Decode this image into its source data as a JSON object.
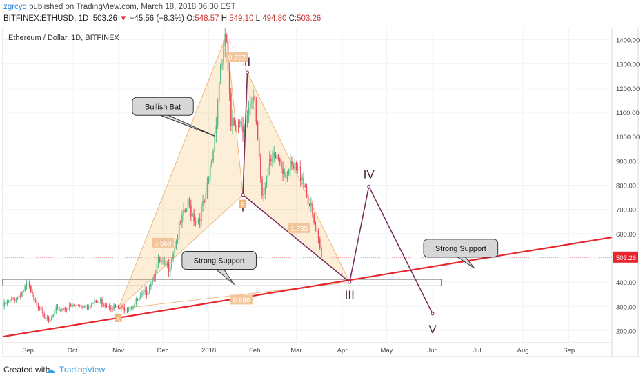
{
  "header": {
    "username": "zgrcyd",
    "published": " published on TradingView.com, March 18, 2018 06:30 EST",
    "symbol": "BITFINEX:ETHUSD, 1D",
    "last": "503.26",
    "change_arrow": "▼",
    "change": "−45.56 (−8.3%)",
    "o_label": "O:",
    "o_value": "548.57",
    "h_label": "H:",
    "h_value": "549.10",
    "l_label": "L:",
    "l_value": "494.80",
    "c_label": "C:",
    "c_value": "503.26"
  },
  "footer": {
    "created_with": "Created with",
    "logo_icon": "tradingview-cloud-icon",
    "brand": "TradingView"
  },
  "chart_data": {
    "type": "candlestick",
    "title": "Ethereum / Dollar, 1D, BITFINEX",
    "y_ticks": [
      200,
      300,
      400,
      500,
      600,
      700,
      800,
      900,
      1000,
      1100,
      1200,
      1300,
      1400
    ],
    "ylim": [
      150,
      1450
    ],
    "x_ticks": [
      {
        "label": "Sep",
        "date": "2017-09-01"
      },
      {
        "label": "Oct",
        "date": "2017-10-01"
      },
      {
        "label": "Nov",
        "date": "2017-11-01"
      },
      {
        "label": "Dec",
        "date": "2017-12-01"
      },
      {
        "label": "2018",
        "date": "2018-01-01"
      },
      {
        "label": "Feb",
        "date": "2018-02-01"
      },
      {
        "label": "Mar",
        "date": "2018-03-01"
      },
      {
        "label": "Apr",
        "date": "2018-04-01"
      },
      {
        "label": "May",
        "date": "2018-05-01"
      },
      {
        "label": "Jun",
        "date": "2018-06-01"
      },
      {
        "label": "Jul",
        "date": "2018-07-01"
      },
      {
        "label": "Aug",
        "date": "2018-08-01"
      },
      {
        "label": "Sep",
        "date": "2018-09-01"
      }
    ],
    "xlim": [
      "2017-08-15",
      "2018-09-30"
    ],
    "last_price_label": "503.26",
    "price_path": [
      {
        "date": "2017-08-15",
        "price": 300
      },
      {
        "date": "2017-08-25",
        "price": 340
      },
      {
        "date": "2017-09-01",
        "price": 390
      },
      {
        "date": "2017-09-05",
        "price": 320
      },
      {
        "date": "2017-09-10",
        "price": 295
      },
      {
        "date": "2017-09-15",
        "price": 230
      },
      {
        "date": "2017-09-20",
        "price": 285
      },
      {
        "date": "2017-10-01",
        "price": 300
      },
      {
        "date": "2017-10-10",
        "price": 305
      },
      {
        "date": "2017-10-20",
        "price": 320
      },
      {
        "date": "2017-10-28",
        "price": 300
      },
      {
        "date": "2017-11-02",
        "price": 290
      },
      {
        "date": "2017-11-10",
        "price": 300
      },
      {
        "date": "2017-11-20",
        "price": 360
      },
      {
        "date": "2017-11-28",
        "price": 480
      },
      {
        "date": "2017-12-05",
        "price": 460
      },
      {
        "date": "2017-12-12",
        "price": 620
      },
      {
        "date": "2017-12-18",
        "price": 720
      },
      {
        "date": "2017-12-24",
        "price": 650
      },
      {
        "date": "2017-12-30",
        "price": 740
      },
      {
        "date": "2018-01-04",
        "price": 950
      },
      {
        "date": "2018-01-09",
        "price": 1300
      },
      {
        "date": "2018-01-13",
        "price": 1390
      },
      {
        "date": "2018-01-16",
        "price": 1020
      },
      {
        "date": "2018-01-20",
        "price": 1080
      },
      {
        "date": "2018-01-26",
        "price": 1050
      },
      {
        "date": "2018-02-01",
        "price": 1150
      },
      {
        "date": "2018-02-06",
        "price": 770
      },
      {
        "date": "2018-02-10",
        "price": 860
      },
      {
        "date": "2018-02-16",
        "price": 920
      },
      {
        "date": "2018-02-22",
        "price": 860
      },
      {
        "date": "2018-02-28",
        "price": 860
      },
      {
        "date": "2018-03-05",
        "price": 850
      },
      {
        "date": "2018-03-10",
        "price": 720
      },
      {
        "date": "2018-03-14",
        "price": 610
      },
      {
        "date": "2018-03-18",
        "price": 503
      }
    ],
    "bat_pattern": {
      "name": "Bullish Bat",
      "points": [
        {
          "label": "X",
          "date": "2017-11-01",
          "price": 290
        },
        {
          "label": "A",
          "date": "2018-01-13",
          "price": 1420
        },
        {
          "label": "B",
          "date": "2018-01-24",
          "price": 760
        },
        {
          "label": "C",
          "date": "2018-01-27",
          "price": 1265
        },
        {
          "label": "D",
          "date": "2018-04-06",
          "price": 400
        }
      ],
      "ratios": [
        {
          "label": "0.757",
          "date": "2018-01-20",
          "price": 1325
        },
        {
          "label": "0.569",
          "date": "2017-12-01",
          "price": 560
        },
        {
          "label": "1.735",
          "date": "2018-03-03",
          "price": 620
        },
        {
          "label": "0.886",
          "date": "2018-01-23",
          "price": 325
        }
      ]
    },
    "wave_path": [
      {
        "label": "II",
        "date": "2018-01-27",
        "price": 1265
      },
      {
        "label": "I",
        "date": "2018-01-24",
        "price": 760
      },
      {
        "label": "III",
        "date": "2018-04-06",
        "price": 400
      },
      {
        "label": "IV",
        "date": "2018-04-19",
        "price": 795
      },
      {
        "label": "V",
        "date": "2018-06-01",
        "price": 270
      }
    ],
    "support_line": {
      "from": {
        "date": "2017-08-15",
        "price": 175
      },
      "to": {
        "date": "2018-09-30",
        "price": 585
      }
    },
    "support_band": {
      "from_date": "2017-08-15",
      "to_date": "2018-06-07",
      "low": 385,
      "high": 412
    },
    "callouts": [
      {
        "text": "Bullish Bat",
        "date": "2017-12-01",
        "price": 1125
      },
      {
        "text": "Strong Support",
        "date": "2018-01-08",
        "price": 490
      },
      {
        "text": "Strong Support",
        "date": "2018-06-20",
        "price": 540
      }
    ]
  }
}
